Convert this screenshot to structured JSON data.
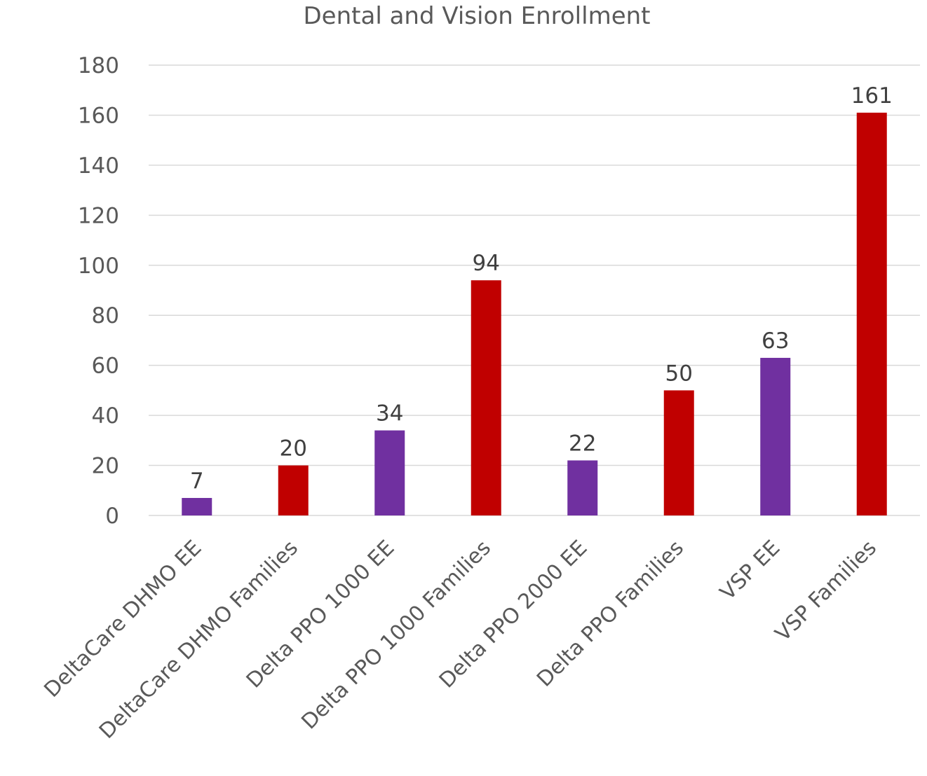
{
  "chart_data": {
    "type": "bar",
    "title": "Dental and Vision Enrollment",
    "categories": [
      "DeltaCare DHMO EE",
      "DeltaCare DHMO Families",
      "Delta PPO 1000 EE",
      "Delta PPO 1000 Families",
      "Delta PPO 2000 EE",
      "Delta PPO Families",
      "VSP EE",
      "VSP Families"
    ],
    "values": [
      7,
      20,
      34,
      94,
      22,
      50,
      63,
      161
    ],
    "bar_colors": [
      "#7030A0",
      "#C00000",
      "#7030A0",
      "#C00000",
      "#7030A0",
      "#C00000",
      "#7030A0",
      "#C00000"
    ],
    "ylim": [
      0,
      180
    ],
    "yticks": [
      0,
      20,
      40,
      60,
      80,
      100,
      120,
      140,
      160,
      180
    ],
    "grid": true,
    "legend": "none",
    "xlabel": "",
    "ylabel": ""
  }
}
